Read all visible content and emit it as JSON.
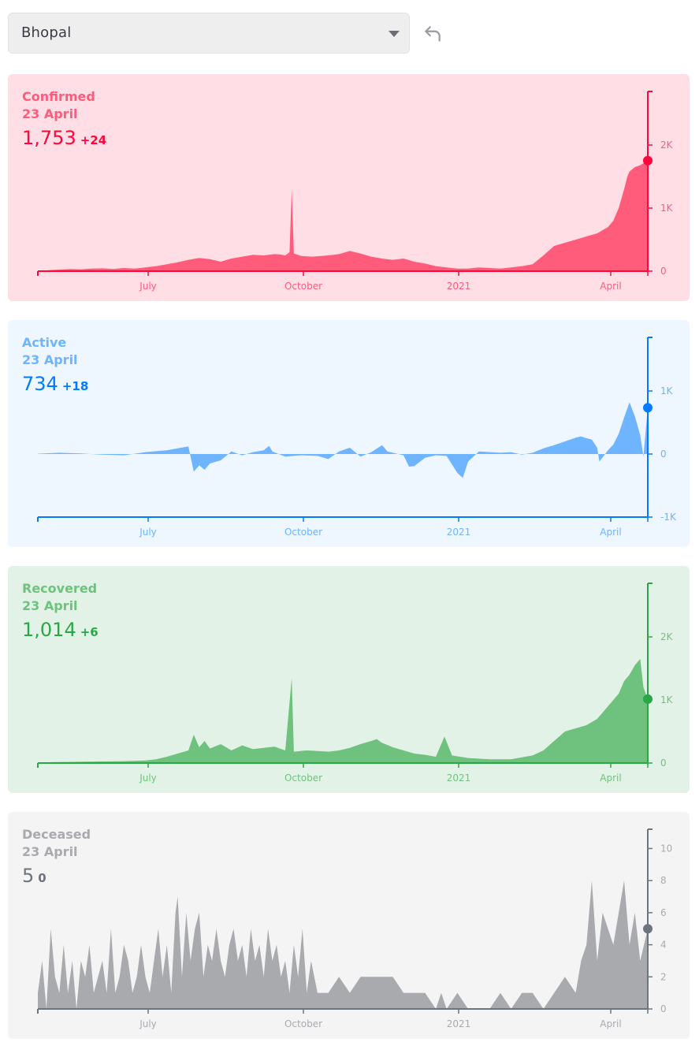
{
  "region_select": {
    "selected": "Bhopal"
  },
  "icons": {
    "caret": "chevron-down-icon",
    "undo": "undo-icon"
  },
  "chart_data": [
    {
      "type": "area",
      "key": "confirmed",
      "title": "Confirmed",
      "date": "23 April",
      "value": "1,753",
      "delta": "+24",
      "color": "#ff073a",
      "fill": "#ff5c7c",
      "bg": "#ffdfe5",
      "month_labels": [
        "July",
        "October",
        "2021",
        "April"
      ],
      "y_ticks": [
        {
          "v": 2000,
          "label": "2K"
        },
        {
          "v": 1000,
          "label": "1K"
        },
        {
          "v": 0,
          "label": "0"
        }
      ],
      "ylim": [
        0,
        2850
      ],
      "x_days": 393,
      "marker_value": 1753,
      "series": [
        [
          0,
          5
        ],
        [
          10,
          15
        ],
        [
          20,
          25
        ],
        [
          30,
          35
        ],
        [
          40,
          30
        ],
        [
          50,
          40
        ],
        [
          60,
          45
        ],
        [
          70,
          35
        ],
        [
          80,
          50
        ],
        [
          90,
          40
        ],
        [
          100,
          60
        ],
        [
          110,
          80
        ],
        [
          120,
          110
        ],
        [
          130,
          140
        ],
        [
          140,
          180
        ],
        [
          150,
          210
        ],
        [
          160,
          190
        ],
        [
          170,
          150
        ],
        [
          180,
          200
        ],
        [
          190,
          230
        ],
        [
          200,
          260
        ],
        [
          210,
          250
        ],
        [
          220,
          270
        ],
        [
          225,
          265
        ],
        [
          230,
          250
        ],
        [
          234,
          300
        ],
        [
          236,
          1300
        ],
        [
          238,
          280
        ],
        [
          245,
          240
        ],
        [
          255,
          230
        ],
        [
          270,
          250
        ],
        [
          280,
          270
        ],
        [
          290,
          320
        ],
        [
          300,
          280
        ],
        [
          310,
          230
        ],
        [
          320,
          200
        ],
        [
          330,
          180
        ],
        [
          340,
          200
        ],
        [
          350,
          150
        ],
        [
          360,
          120
        ],
        [
          370,
          80
        ],
        [
          380,
          60
        ],
        [
          390,
          40
        ],
        [
          400,
          40
        ],
        [
          410,
          60
        ],
        [
          420,
          50
        ],
        [
          430,
          40
        ],
        [
          440,
          60
        ],
        [
          450,
          80
        ],
        [
          460,
          110
        ],
        [
          470,
          250
        ],
        [
          480,
          400
        ],
        [
          490,
          450
        ],
        [
          500,
          500
        ],
        [
          510,
          550
        ],
        [
          520,
          600
        ],
        [
          530,
          700
        ],
        [
          535,
          800
        ],
        [
          540,
          1000
        ],
        [
          545,
          1300
        ],
        [
          548,
          1500
        ],
        [
          550,
          1580
        ],
        [
          555,
          1650
        ],
        [
          560,
          1680
        ],
        [
          567,
          1753
        ]
      ]
    },
    {
      "type": "area",
      "key": "active",
      "title": "Active",
      "date": "23 April",
      "value": "734",
      "delta": "+18",
      "color": "#007bff",
      "fill": "#6eb4ff",
      "bg": "#eef6ff",
      "month_labels": [
        "July",
        "October",
        "2021",
        "April"
      ],
      "y_ticks": [
        {
          "v": 1000,
          "label": "1K"
        },
        {
          "v": 0,
          "label": "0"
        },
        {
          "v": -1000,
          "label": "-1K"
        }
      ],
      "ylim": [
        -1000,
        1850
      ],
      "x_days": 393,
      "marker_value": 734,
      "series": [
        [
          0,
          5
        ],
        [
          20,
          20
        ],
        [
          40,
          10
        ],
        [
          60,
          -10
        ],
        [
          80,
          -20
        ],
        [
          100,
          30
        ],
        [
          120,
          60
        ],
        [
          130,
          90
        ],
        [
          140,
          120
        ],
        [
          145,
          -280
        ],
        [
          150,
          -180
        ],
        [
          155,
          -250
        ],
        [
          160,
          -150
        ],
        [
          170,
          -100
        ],
        [
          180,
          40
        ],
        [
          190,
          -20
        ],
        [
          200,
          30
        ],
        [
          210,
          60
        ],
        [
          215,
          130
        ],
        [
          218,
          40
        ],
        [
          230,
          -40
        ],
        [
          245,
          -20
        ],
        [
          260,
          -30
        ],
        [
          270,
          -80
        ],
        [
          280,
          40
        ],
        [
          290,
          100
        ],
        [
          300,
          -40
        ],
        [
          310,
          30
        ],
        [
          320,
          140
        ],
        [
          325,
          40
        ],
        [
          340,
          -20
        ],
        [
          345,
          -200
        ],
        [
          350,
          -190
        ],
        [
          360,
          -60
        ],
        [
          370,
          -20
        ],
        [
          380,
          -30
        ],
        [
          390,
          -300
        ],
        [
          395,
          -380
        ],
        [
          400,
          -120
        ],
        [
          410,
          40
        ],
        [
          430,
          20
        ],
        [
          440,
          30
        ],
        [
          450,
          -10
        ],
        [
          460,
          20
        ],
        [
          470,
          90
        ],
        [
          480,
          140
        ],
        [
          490,
          200
        ],
        [
          500,
          260
        ],
        [
          505,
          280
        ],
        [
          510,
          250
        ],
        [
          515,
          230
        ],
        [
          520,
          100
        ],
        [
          522,
          -120
        ],
        [
          530,
          60
        ],
        [
          535,
          150
        ],
        [
          540,
          320
        ],
        [
          545,
          580
        ],
        [
          550,
          820
        ],
        [
          555,
          600
        ],
        [
          560,
          300
        ],
        [
          563,
          -40
        ],
        [
          567,
          734
        ]
      ]
    },
    {
      "type": "area",
      "key": "recovered",
      "title": "Recovered",
      "date": "23 April",
      "value": "1,014",
      "delta": "+6",
      "color": "#28a745",
      "fill": "#6fc27e",
      "bg": "#e3f2e6",
      "month_labels": [
        "July",
        "October",
        "2021",
        "April"
      ],
      "y_ticks": [
        {
          "v": 2000,
          "label": "2K"
        },
        {
          "v": 1000,
          "label": "1K"
        },
        {
          "v": 0,
          "label": "0"
        }
      ],
      "ylim": [
        0,
        2850
      ],
      "x_days": 393,
      "marker_value": 1014,
      "series": [
        [
          0,
          10
        ],
        [
          20,
          15
        ],
        [
          40,
          20
        ],
        [
          60,
          25
        ],
        [
          80,
          30
        ],
        [
          100,
          40
        ],
        [
          110,
          60
        ],
        [
          120,
          100
        ],
        [
          130,
          150
        ],
        [
          140,
          200
        ],
        [
          145,
          450
        ],
        [
          150,
          250
        ],
        [
          155,
          350
        ],
        [
          160,
          230
        ],
        [
          170,
          300
        ],
        [
          180,
          200
        ],
        [
          190,
          280
        ],
        [
          200,
          220
        ],
        [
          210,
          240
        ],
        [
          220,
          260
        ],
        [
          230,
          200
        ],
        [
          236,
          1350
        ],
        [
          238,
          180
        ],
        [
          250,
          200
        ],
        [
          260,
          190
        ],
        [
          270,
          180
        ],
        [
          280,
          200
        ],
        [
          290,
          240
        ],
        [
          300,
          300
        ],
        [
          310,
          350
        ],
        [
          315,
          380
        ],
        [
          320,
          320
        ],
        [
          330,
          250
        ],
        [
          340,
          200
        ],
        [
          350,
          150
        ],
        [
          360,
          130
        ],
        [
          370,
          100
        ],
        [
          378,
          420
        ],
        [
          385,
          120
        ],
        [
          400,
          80
        ],
        [
          420,
          60
        ],
        [
          440,
          60
        ],
        [
          450,
          90
        ],
        [
          460,
          120
        ],
        [
          470,
          200
        ],
        [
          480,
          350
        ],
        [
          490,
          500
        ],
        [
          500,
          550
        ],
        [
          510,
          600
        ],
        [
          520,
          700
        ],
        [
          530,
          900
        ],
        [
          540,
          1100
        ],
        [
          545,
          1300
        ],
        [
          550,
          1400
        ],
        [
          555,
          1550
        ],
        [
          560,
          1650
        ],
        [
          563,
          1200
        ],
        [
          567,
          1014
        ]
      ]
    },
    {
      "type": "area",
      "key": "deceased",
      "title": "Deceased",
      "date": "23 April",
      "value": "5",
      "delta": "0",
      "color": "#6c757d",
      "fill": "#a8aaae",
      "bg": "#f4f4f5",
      "month_labels": [
        "July",
        "October",
        "2021",
        "April"
      ],
      "y_ticks": [
        {
          "v": 10,
          "label": "10"
        },
        {
          "v": 8,
          "label": "8"
        },
        {
          "v": 6,
          "label": "6"
        },
        {
          "v": 4,
          "label": "4"
        },
        {
          "v": 2,
          "label": "2"
        },
        {
          "v": 0,
          "label": "0"
        }
      ],
      "ylim": [
        0,
        11.2
      ],
      "x_days": 393,
      "marker_value": 5,
      "series": [
        [
          0,
          1
        ],
        [
          4,
          3
        ],
        [
          8,
          0
        ],
        [
          12,
          5
        ],
        [
          16,
          2
        ],
        [
          20,
          1
        ],
        [
          24,
          4
        ],
        [
          28,
          1
        ],
        [
          32,
          3
        ],
        [
          36,
          0
        ],
        [
          40,
          3
        ],
        [
          44,
          2
        ],
        [
          48,
          4
        ],
        [
          52,
          1
        ],
        [
          56,
          2
        ],
        [
          60,
          3
        ],
        [
          64,
          1
        ],
        [
          68,
          5
        ],
        [
          72,
          1
        ],
        [
          76,
          2
        ],
        [
          80,
          4
        ],
        [
          84,
          3
        ],
        [
          88,
          1
        ],
        [
          92,
          2
        ],
        [
          96,
          4
        ],
        [
          100,
          2
        ],
        [
          104,
          1
        ],
        [
          108,
          3
        ],
        [
          112,
          5
        ],
        [
          116,
          2
        ],
        [
          120,
          4
        ],
        [
          124,
          1
        ],
        [
          128,
          6
        ],
        [
          130,
          7
        ],
        [
          134,
          2
        ],
        [
          138,
          6
        ],
        [
          142,
          3
        ],
        [
          146,
          5
        ],
        [
          150,
          6
        ],
        [
          154,
          2
        ],
        [
          158,
          4
        ],
        [
          162,
          3
        ],
        [
          166,
          5
        ],
        [
          170,
          3
        ],
        [
          174,
          2
        ],
        [
          178,
          4
        ],
        [
          182,
          5
        ],
        [
          186,
          3
        ],
        [
          190,
          4
        ],
        [
          194,
          2
        ],
        [
          198,
          5
        ],
        [
          202,
          3
        ],
        [
          206,
          4
        ],
        [
          210,
          2
        ],
        [
          214,
          5
        ],
        [
          218,
          3
        ],
        [
          222,
          4
        ],
        [
          226,
          2
        ],
        [
          230,
          3
        ],
        [
          234,
          1
        ],
        [
          238,
          4
        ],
        [
          242,
          2
        ],
        [
          246,
          5
        ],
        [
          250,
          1
        ],
        [
          254,
          3
        ],
        [
          260,
          1
        ],
        [
          270,
          1
        ],
        [
          280,
          2
        ],
        [
          290,
          1
        ],
        [
          300,
          2
        ],
        [
          310,
          2
        ],
        [
          320,
          2
        ],
        [
          330,
          2
        ],
        [
          340,
          1
        ],
        [
          350,
          1
        ],
        [
          360,
          1
        ],
        [
          370,
          0
        ],
        [
          375,
          1
        ],
        [
          380,
          0
        ],
        [
          390,
          1
        ],
        [
          400,
          0
        ],
        [
          410,
          0
        ],
        [
          420,
          0
        ],
        [
          430,
          1
        ],
        [
          440,
          0
        ],
        [
          450,
          1
        ],
        [
          460,
          1
        ],
        [
          470,
          0
        ],
        [
          480,
          1
        ],
        [
          490,
          2
        ],
        [
          500,
          1
        ],
        [
          505,
          3
        ],
        [
          510,
          4
        ],
        [
          515,
          8
        ],
        [
          520,
          3
        ],
        [
          525,
          6
        ],
        [
          530,
          5
        ],
        [
          535,
          4
        ],
        [
          540,
          6
        ],
        [
          545,
          8
        ],
        [
          550,
          4
        ],
        [
          555,
          6
        ],
        [
          560,
          3
        ],
        [
          567,
          5
        ]
      ]
    }
  ]
}
